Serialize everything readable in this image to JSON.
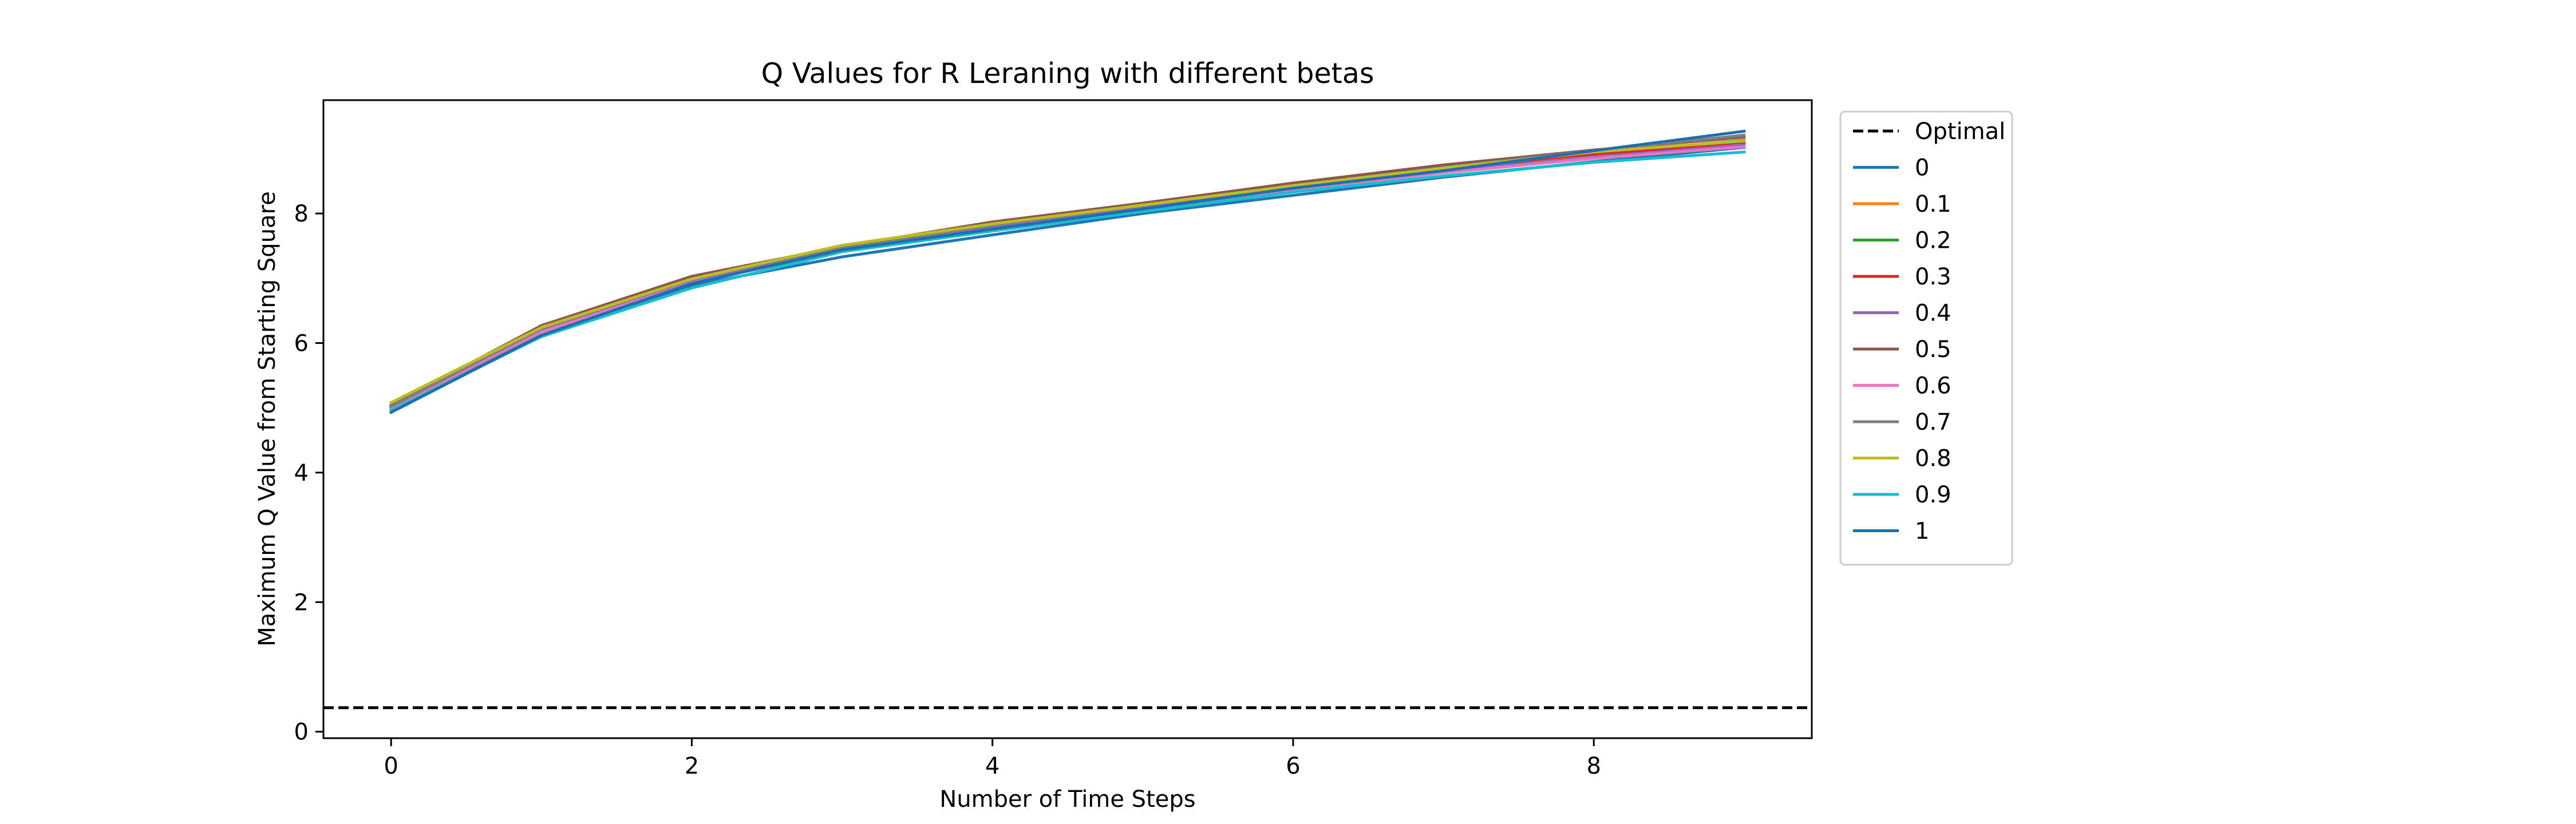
{
  "chart_data": {
    "type": "line",
    "title": "Q Values for R Leraning with different betas",
    "xlabel": "Number of Time Steps",
    "ylabel": "Maximum Q Value from Starting Square",
    "xlim": [
      -0.45,
      9.45
    ],
    "ylim": [
      -0.1,
      9.75
    ],
    "xticks": [
      0,
      2,
      4,
      6,
      8
    ],
    "yticks": [
      0,
      2,
      4,
      6,
      8
    ],
    "legend_position": "outside-upper-right",
    "grid": false,
    "x": [
      0,
      1,
      2,
      3,
      4,
      5,
      6,
      7,
      8,
      9
    ],
    "optimal": {
      "name": "Optimal",
      "value": 0.37,
      "color": "#000000",
      "style": "dashed"
    },
    "series": [
      {
        "name": "0",
        "color": "#1f77b4",
        "values": [
          4.97,
          6.12,
          6.89,
          7.33,
          7.67,
          8.0,
          8.28,
          8.56,
          8.8,
          9.02
        ]
      },
      {
        "name": "0.1",
        "color": "#ff7f0e",
        "values": [
          5.0,
          6.18,
          6.95,
          7.43,
          7.77,
          8.08,
          8.38,
          8.66,
          8.9,
          9.1
        ]
      },
      {
        "name": "0.2",
        "color": "#2ca02c",
        "values": [
          5.01,
          6.2,
          6.96,
          7.44,
          7.78,
          8.1,
          8.4,
          8.68,
          8.93,
          9.13
        ]
      },
      {
        "name": "0.3",
        "color": "#d62728",
        "values": [
          5.02,
          6.21,
          6.98,
          7.46,
          7.8,
          8.12,
          8.42,
          8.7,
          8.92,
          9.08
        ]
      },
      {
        "name": "0.4",
        "color": "#9467bd",
        "values": [
          5.01,
          6.19,
          6.96,
          7.45,
          7.79,
          8.09,
          8.39,
          8.65,
          8.87,
          9.06
        ]
      },
      {
        "name": "0.5",
        "color": "#8c564b",
        "values": [
          5.04,
          6.27,
          7.03,
          7.49,
          7.87,
          8.16,
          8.47,
          8.75,
          8.98,
          9.18
        ]
      },
      {
        "name": "0.6",
        "color": "#e377c2",
        "values": [
          5.0,
          6.17,
          6.93,
          7.42,
          7.75,
          8.06,
          8.36,
          8.63,
          8.85,
          9.03
        ]
      },
      {
        "name": "0.7",
        "color": "#7f7f7f",
        "values": [
          5.02,
          6.22,
          6.99,
          7.47,
          7.82,
          8.13,
          8.43,
          8.71,
          8.97,
          9.21
        ]
      },
      {
        "name": "0.8",
        "color": "#bcbd22",
        "values": [
          5.08,
          6.24,
          6.99,
          7.51,
          7.84,
          8.13,
          8.43,
          8.7,
          8.95,
          9.12
        ]
      },
      {
        "name": "0.9",
        "color": "#17becf",
        "values": [
          4.96,
          6.1,
          6.85,
          7.41,
          7.73,
          8.03,
          8.33,
          8.58,
          8.79,
          8.95
        ]
      },
      {
        "name": "1",
        "color": "#1f6fb0",
        "values": [
          4.93,
          6.12,
          6.92,
          7.44,
          7.76,
          8.07,
          8.39,
          8.66,
          8.97,
          9.27
        ]
      }
    ]
  }
}
